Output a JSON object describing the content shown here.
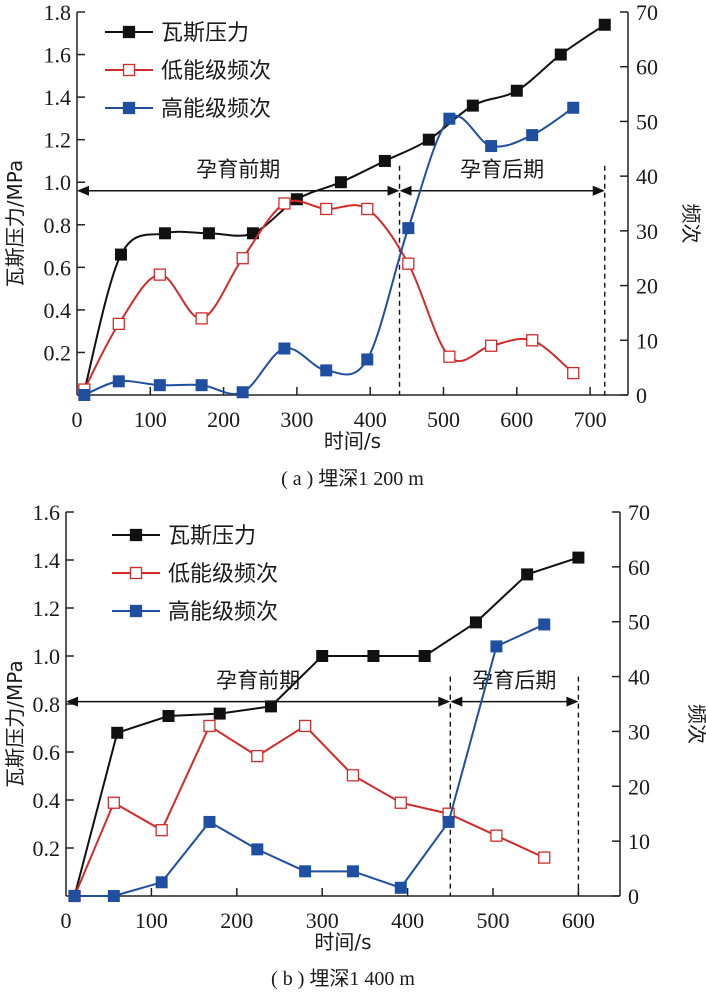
{
  "chart_data": [
    {
      "type": "line",
      "id": "a",
      "caption": "( a ) 埋深1 200 m",
      "xlabel": "时间/s",
      "ylabel": "瓦斯压力/MPa",
      "y2label": "频次",
      "xlim": [
        0,
        750
      ],
      "ylim": [
        0,
        1.8
      ],
      "y2lim": [
        0,
        70
      ],
      "xticks": [
        0,
        100,
        200,
        300,
        400,
        500,
        600,
        700
      ],
      "yticks": [
        0.2,
        0.4,
        0.6,
        0.8,
        1.0,
        1.2,
        1.4,
        1.6,
        1.8
      ],
      "ytick_labels": [
        "0.2",
        "0.4",
        "0.6",
        "0.8",
        "1.0",
        "1.2",
        "1.4",
        "1.6",
        "1.8"
      ],
      "y2ticks": [
        0,
        10,
        20,
        30,
        40,
        50,
        60,
        70
      ],
      "smooth": true,
      "phases": [
        {
          "label": "孕育前期",
          "from": 0,
          "to": 440
        },
        {
          "label": "孕育后期",
          "from": 440,
          "to": 720
        }
      ],
      "phase_arrow_y": 0.96,
      "legend_position": "top-left",
      "series": [
        {
          "name": "瓦斯压力",
          "axis": "left",
          "color": "#111111",
          "marker": "filled-square",
          "x": [
            10,
            60,
            120,
            180,
            240,
            300,
            360,
            420,
            480,
            540,
            600,
            660,
            720
          ],
          "y": [
            0.02,
            0.66,
            0.76,
            0.76,
            0.76,
            0.92,
            1.0,
            1.1,
            1.2,
            1.36,
            1.43,
            1.6,
            1.74
          ]
        },
        {
          "name": "低能级频次",
          "axis": "right",
          "color": "#d42a2a",
          "marker": "open-square",
          "x": [
            10,
            57,
            113,
            170,
            226,
            283,
            340,
            396,
            452,
            508,
            565,
            621,
            677
          ],
          "y": [
            1,
            13,
            22,
            14,
            25,
            35,
            34,
            34,
            24,
            7,
            9,
            10,
            4
          ]
        },
        {
          "name": "高能级频次",
          "axis": "right",
          "color": "#1f4fa0",
          "marker": "filled-square",
          "x": [
            10,
            57,
            113,
            170,
            226,
            283,
            340,
            396,
            452,
            508,
            565,
            621,
            677
          ],
          "y": [
            0,
            2.5,
            1.8,
            1.8,
            0.5,
            8.5,
            4.5,
            6.5,
            30.5,
            50.5,
            45.5,
            47.5,
            52.5
          ]
        }
      ]
    },
    {
      "type": "line",
      "id": "b",
      "caption": "( b ) 埋深1 400 m",
      "xlabel": "时间/s",
      "ylabel": "瓦斯压力/MPa",
      "y2label": "频次",
      "xlim": [
        0,
        640
      ],
      "ylim": [
        0,
        1.6
      ],
      "y2lim": [
        0,
        70
      ],
      "xticks": [
        0,
        100,
        200,
        300,
        400,
        500,
        600
      ],
      "yticks": [
        0.2,
        0.4,
        0.6,
        0.8,
        1.0,
        1.2,
        1.4,
        1.6
      ],
      "ytick_labels": [
        "0.2",
        "0.4",
        "0.6",
        "0.8",
        "1.0",
        "1.2",
        "1.4",
        "1.6"
      ],
      "y2ticks": [
        0,
        10,
        20,
        30,
        40,
        50,
        60,
        70
      ],
      "smooth": false,
      "phases": [
        {
          "label": "孕育前期",
          "from": 0,
          "to": 450
        },
        {
          "label": "孕育后期",
          "from": 450,
          "to": 600
        }
      ],
      "phase_arrow_y": 0.81,
      "legend_position": "top-left",
      "series": [
        {
          "name": "瓦斯压力",
          "axis": "left",
          "color": "#111111",
          "marker": "filled-square",
          "x": [
            10,
            60,
            120,
            180,
            240,
            300,
            360,
            420,
            480,
            540,
            600
          ],
          "y": [
            0.0,
            0.68,
            0.75,
            0.76,
            0.79,
            1.0,
            1.0,
            1.0,
            1.14,
            1.34,
            1.41
          ]
        },
        {
          "name": "低能级频次",
          "axis": "right",
          "color": "#d42a2a",
          "marker": "open-square",
          "x": [
            10,
            56,
            112,
            168,
            224,
            280,
            336,
            392,
            448,
            504,
            560
          ],
          "y": [
            0,
            17,
            12,
            31,
            25.5,
            31,
            22,
            17,
            15,
            11,
            7
          ]
        },
        {
          "name": "高能级频次",
          "axis": "right",
          "color": "#1f4fa0",
          "marker": "filled-square",
          "x": [
            10,
            56,
            112,
            168,
            224,
            280,
            336,
            392,
            448,
            504,
            560
          ],
          "y": [
            0,
            0,
            2.5,
            13.5,
            8.5,
            4.5,
            4.5,
            1.5,
            13.5,
            45.5,
            49.5
          ]
        }
      ]
    }
  ]
}
